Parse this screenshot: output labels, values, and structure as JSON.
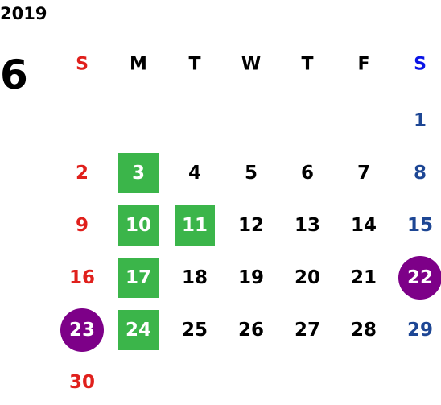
{
  "year": "2019",
  "month": "6",
  "weekdays": [
    "S",
    "M",
    "T",
    "W",
    "T",
    "F",
    "S"
  ],
  "weeks": [
    [
      null,
      null,
      null,
      null,
      null,
      null,
      "1"
    ],
    [
      "2",
      {
        "label": "3",
        "highlight": "square"
      },
      "4",
      "5",
      "6",
      "7",
      "8"
    ],
    [
      "9",
      {
        "label": "10",
        "highlight": "square"
      },
      {
        "label": "11",
        "highlight": "square"
      },
      "12",
      "13",
      "14",
      "15"
    ],
    [
      "16",
      {
        "label": "17",
        "highlight": "square"
      },
      "18",
      "19",
      "20",
      "21",
      {
        "label": "22",
        "highlight": "circle"
      }
    ],
    [
      {
        "label": "23",
        "highlight": "circle"
      },
      {
        "label": "24",
        "highlight": "square"
      },
      "25",
      "26",
      "27",
      "28",
      "29"
    ],
    [
      "30",
      null,
      null,
      null,
      null,
      null,
      null
    ]
  ],
  "colors": {
    "sunday": "#e0201c",
    "saturday_header": "#0a14e6",
    "saturday": "#1d4694",
    "weekday": "#000000",
    "square": "#3bb54a",
    "circle": "#7d0088",
    "highlight_text": "#ffffff"
  }
}
